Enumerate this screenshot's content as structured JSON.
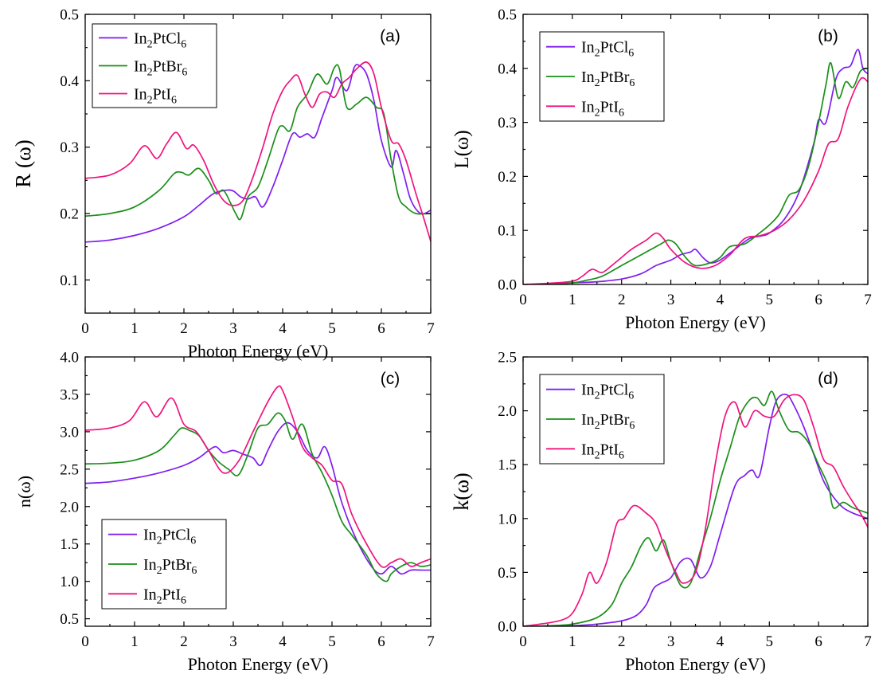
{
  "chart_data": [
    {
      "type": "line",
      "panel_label": "(a)",
      "xlabel": "Photon Energy (eV)",
      "ylabel": "R (ω)",
      "xlim": [
        0,
        7
      ],
      "ylim": [
        0.05,
        0.5
      ],
      "xticks": [
        0,
        1,
        2,
        3,
        4,
        5,
        6,
        7
      ],
      "yticks": [
        0.1,
        0.2,
        0.3,
        0.4,
        0.5
      ],
      "ytick_labels": [
        "0.1",
        "0.2",
        "0.3",
        "0.4",
        "0.5"
      ],
      "legend_position": "top-left",
      "series": [
        {
          "compound": "In2PtCl6",
          "name_base": "In",
          "sub1": "2",
          "name_mid": "PtCl",
          "sub2": "6",
          "color": "#7f1df0",
          "x": [
            0,
            0.5,
            1,
            1.5,
            2,
            2.3,
            2.6,
            2.85,
            3.0,
            3.15,
            3.3,
            3.45,
            3.6,
            3.8,
            4.0,
            4.2,
            4.35,
            4.5,
            4.65,
            4.8,
            5.0,
            5.1,
            5.3,
            5.45,
            5.55,
            5.7,
            5.85,
            6.0,
            6.2,
            6.3,
            6.45,
            6.6,
            6.8,
            7.0
          ],
          "y": [
            0.157,
            0.16,
            0.167,
            0.178,
            0.195,
            0.212,
            0.23,
            0.235,
            0.234,
            0.225,
            0.222,
            0.225,
            0.21,
            0.24,
            0.28,
            0.32,
            0.315,
            0.32,
            0.315,
            0.345,
            0.385,
            0.405,
            0.385,
            0.42,
            0.423,
            0.41,
            0.37,
            0.31,
            0.27,
            0.295,
            0.26,
            0.22,
            0.2,
            0.205
          ]
        },
        {
          "compound": "In2PtBr6",
          "name_base": "In",
          "sub1": "2",
          "name_mid": "PtBr",
          "sub2": "6",
          "color": "#1a8f1a",
          "x": [
            0,
            0.5,
            1,
            1.5,
            1.8,
            1.95,
            2.1,
            2.3,
            2.5,
            2.65,
            2.8,
            2.95,
            3.05,
            3.15,
            3.3,
            3.5,
            3.7,
            3.9,
            4.0,
            4.15,
            4.3,
            4.5,
            4.7,
            4.9,
            5.05,
            5.15,
            5.3,
            5.5,
            5.7,
            5.9,
            6.05,
            6.2,
            6.35,
            6.5,
            6.7,
            7.0
          ],
          "y": [
            0.196,
            0.2,
            0.21,
            0.235,
            0.26,
            0.262,
            0.258,
            0.268,
            0.25,
            0.23,
            0.235,
            0.215,
            0.2,
            0.192,
            0.225,
            0.24,
            0.28,
            0.325,
            0.332,
            0.325,
            0.36,
            0.38,
            0.41,
            0.395,
            0.42,
            0.418,
            0.36,
            0.365,
            0.375,
            0.36,
            0.35,
            0.28,
            0.225,
            0.21,
            0.2,
            0.2
          ]
        },
        {
          "compound": "In2PtI6",
          "name_base": "In",
          "sub1": "2",
          "name_mid": "PtI",
          "sub2": "6",
          "color": "#f0137e",
          "x": [
            0,
            0.5,
            0.9,
            1.2,
            1.45,
            1.65,
            1.85,
            2.05,
            2.2,
            2.4,
            2.6,
            2.8,
            3.0,
            3.2,
            3.4,
            3.6,
            3.8,
            4.0,
            4.15,
            4.3,
            4.45,
            4.6,
            4.75,
            4.9,
            5.05,
            5.2,
            5.35,
            5.5,
            5.7,
            5.85,
            6.0,
            6.2,
            6.35,
            6.5,
            6.7,
            6.85,
            7.0
          ],
          "y": [
            0.253,
            0.258,
            0.275,
            0.302,
            0.283,
            0.305,
            0.322,
            0.298,
            0.303,
            0.28,
            0.245,
            0.22,
            0.212,
            0.22,
            0.255,
            0.3,
            0.35,
            0.385,
            0.4,
            0.408,
            0.38,
            0.36,
            0.38,
            0.383,
            0.375,
            0.395,
            0.405,
            0.418,
            0.428,
            0.41,
            0.36,
            0.31,
            0.305,
            0.28,
            0.23,
            0.195,
            0.158
          ]
        }
      ]
    },
    {
      "type": "line",
      "panel_label": "(b)",
      "xlabel": "Photon Energy (eV)",
      "ylabel": "L(ω)",
      "xlim": [
        0,
        7
      ],
      "ylim": [
        0,
        0.5
      ],
      "xticks": [
        0,
        1,
        2,
        3,
        4,
        5,
        6,
        7
      ],
      "yticks": [
        0.0,
        0.1,
        0.2,
        0.3,
        0.4,
        0.5
      ],
      "ytick_labels": [
        "0.0",
        "0.1",
        "0.2",
        "0.3",
        "0.4",
        "0.5"
      ],
      "legend_position": "top-left",
      "series": [
        {
          "compound": "In2PtCl6",
          "name_base": "In",
          "sub1": "2",
          "name_mid": "PtCl",
          "sub2": "6",
          "color": "#7f1df0",
          "x": [
            0,
            0.5,
            1,
            1.5,
            2,
            2.4,
            2.7,
            3.0,
            3.2,
            3.4,
            3.5,
            3.65,
            3.8,
            4.0,
            4.3,
            4.6,
            4.85,
            5.0,
            5.3,
            5.6,
            5.9,
            6.0,
            6.15,
            6.35,
            6.5,
            6.65,
            6.8,
            6.9,
            7.0
          ],
          "y": [
            0,
            0.001,
            0.003,
            0.005,
            0.01,
            0.02,
            0.035,
            0.045,
            0.055,
            0.06,
            0.065,
            0.05,
            0.04,
            0.045,
            0.065,
            0.085,
            0.09,
            0.095,
            0.12,
            0.17,
            0.26,
            0.305,
            0.3,
            0.38,
            0.4,
            0.405,
            0.435,
            0.4,
            0.39
          ]
        },
        {
          "compound": "In2PtBr6",
          "name_base": "In",
          "sub1": "2",
          "name_mid": "PtBr",
          "sub2": "6",
          "color": "#1a8f1a",
          "x": [
            0,
            0.5,
            1,
            1.3,
            1.6,
            2.0,
            2.3,
            2.6,
            2.8,
            2.95,
            3.1,
            3.3,
            3.5,
            3.8,
            4.0,
            4.2,
            4.5,
            4.8,
            5.0,
            5.2,
            5.4,
            5.6,
            5.8,
            6.0,
            6.15,
            6.25,
            6.4,
            6.55,
            6.7,
            6.85,
            7.0
          ],
          "y": [
            0,
            0.001,
            0.003,
            0.008,
            0.015,
            0.035,
            0.05,
            0.065,
            0.075,
            0.082,
            0.075,
            0.05,
            0.035,
            0.04,
            0.05,
            0.07,
            0.075,
            0.095,
            0.11,
            0.13,
            0.165,
            0.175,
            0.22,
            0.3,
            0.37,
            0.41,
            0.345,
            0.375,
            0.365,
            0.395,
            0.4
          ]
        },
        {
          "compound": "In2PtI6",
          "name_base": "In",
          "sub1": "2",
          "name_mid": "PtI",
          "sub2": "6",
          "color": "#f0137e",
          "x": [
            0,
            0.5,
            1,
            1.2,
            1.4,
            1.6,
            1.8,
            2.0,
            2.2,
            2.5,
            2.7,
            2.85,
            3.0,
            3.3,
            3.6,
            3.9,
            4.2,
            4.5,
            4.8,
            5.1,
            5.4,
            5.7,
            6.0,
            6.2,
            6.4,
            6.6,
            6.85,
            7.0
          ],
          "y": [
            0,
            0.002,
            0.006,
            0.015,
            0.028,
            0.022,
            0.035,
            0.05,
            0.065,
            0.082,
            0.095,
            0.085,
            0.065,
            0.04,
            0.03,
            0.035,
            0.055,
            0.085,
            0.09,
            0.1,
            0.12,
            0.155,
            0.21,
            0.26,
            0.27,
            0.33,
            0.38,
            0.375
          ]
        }
      ]
    },
    {
      "type": "line",
      "panel_label": "(c)",
      "xlabel": "Photon Energy (eV)",
      "ylabel": "n(ω)",
      "xlim": [
        0,
        7
      ],
      "ylim": [
        0.4,
        4.0
      ],
      "xticks": [
        0,
        1,
        2,
        3,
        4,
        5,
        6,
        7
      ],
      "yticks": [
        0.5,
        1.0,
        1.5,
        2.0,
        2.5,
        3.0,
        3.5,
        4.0
      ],
      "ytick_labels": [
        "0.5",
        "1.0",
        "1.5",
        "2.0",
        "2.5",
        "3.0",
        "3.5",
        "4.0"
      ],
      "legend_position": "bottom-left",
      "series": [
        {
          "compound": "In2PtCl6",
          "name_base": "In",
          "sub1": "2",
          "name_mid": "PtCl",
          "sub2": "6",
          "color": "#7f1df0",
          "x": [
            0,
            0.5,
            1,
            1.5,
            2,
            2.3,
            2.5,
            2.65,
            2.8,
            3.0,
            3.2,
            3.4,
            3.55,
            3.7,
            3.9,
            4.1,
            4.3,
            4.5,
            4.7,
            4.85,
            5.0,
            5.2,
            5.5,
            5.8,
            6.0,
            6.2,
            6.4,
            6.6,
            6.8,
            7.0
          ],
          "y": [
            2.31,
            2.33,
            2.38,
            2.45,
            2.55,
            2.65,
            2.75,
            2.8,
            2.72,
            2.75,
            2.7,
            2.65,
            2.55,
            2.75,
            3.0,
            3.12,
            3.0,
            2.75,
            2.65,
            2.8,
            2.55,
            2.05,
            1.55,
            1.2,
            1.1,
            1.2,
            1.1,
            1.15,
            1.15,
            1.15
          ]
        },
        {
          "compound": "In2PtBr6",
          "name_base": "In",
          "sub1": "2",
          "name_mid": "PtBr",
          "sub2": "6",
          "color": "#1a8f1a",
          "x": [
            0,
            0.5,
            1,
            1.5,
            1.8,
            1.95,
            2.1,
            2.3,
            2.5,
            2.7,
            2.9,
            3.1,
            3.3,
            3.5,
            3.7,
            3.9,
            4.05,
            4.2,
            4.4,
            4.6,
            4.8,
            5.0,
            5.2,
            5.4,
            5.7,
            5.9,
            6.1,
            6.2,
            6.4,
            6.6,
            6.8,
            7.0
          ],
          "y": [
            2.57,
            2.58,
            2.62,
            2.75,
            2.95,
            3.05,
            3.02,
            2.95,
            2.75,
            2.6,
            2.5,
            2.42,
            2.7,
            3.05,
            3.1,
            3.25,
            3.15,
            2.9,
            3.1,
            2.7,
            2.45,
            2.15,
            1.8,
            1.62,
            1.35,
            1.1,
            1.0,
            1.1,
            1.2,
            1.25,
            1.2,
            1.22
          ]
        },
        {
          "compound": "In2PtI6",
          "name_base": "In",
          "sub1": "2",
          "name_mid": "PtI",
          "sub2": "6",
          "color": "#f0137e",
          "x": [
            0,
            0.5,
            0.9,
            1.2,
            1.45,
            1.75,
            2.0,
            2.25,
            2.5,
            2.8,
            3.1,
            3.4,
            3.7,
            3.9,
            4.0,
            4.2,
            4.4,
            4.6,
            4.8,
            5.0,
            5.2,
            5.4,
            5.7,
            6.0,
            6.2,
            6.4,
            6.6,
            6.8,
            7.0
          ],
          "y": [
            3.02,
            3.05,
            3.15,
            3.4,
            3.2,
            3.45,
            3.1,
            3.0,
            2.75,
            2.45,
            2.6,
            3.0,
            3.4,
            3.6,
            3.55,
            3.2,
            2.8,
            2.65,
            2.55,
            2.35,
            2.3,
            1.9,
            1.5,
            1.2,
            1.25,
            1.3,
            1.2,
            1.25,
            1.3
          ]
        }
      ]
    },
    {
      "type": "line",
      "panel_label": "(d)",
      "xlabel": "Photon Energy (eV)",
      "ylabel": "k(ω)",
      "xlim": [
        0,
        7
      ],
      "ylim": [
        0,
        2.5
      ],
      "xticks": [
        0,
        1,
        2,
        3,
        4,
        5,
        6,
        7
      ],
      "yticks": [
        0.0,
        0.5,
        1.0,
        1.5,
        2.0,
        2.5
      ],
      "ytick_labels": [
        "0.0",
        "0.5",
        "1.0",
        "1.5",
        "2.0",
        "2.5"
      ],
      "legend_position": "top-left",
      "series": [
        {
          "compound": "In2PtCl6",
          "name_base": "In",
          "sub1": "2",
          "name_mid": "PtCl",
          "sub2": "6",
          "color": "#7f1df0",
          "x": [
            0,
            0.5,
            1,
            1.5,
            2.0,
            2.3,
            2.5,
            2.65,
            2.8,
            3.0,
            3.2,
            3.4,
            3.6,
            3.8,
            4.0,
            4.3,
            4.5,
            4.65,
            4.8,
            5.0,
            5.15,
            5.35,
            5.5,
            5.7,
            5.9,
            6.1,
            6.3,
            6.5,
            6.7,
            7.0
          ],
          "y": [
            0,
            0,
            0.005,
            0.02,
            0.05,
            0.1,
            0.2,
            0.35,
            0.4,
            0.45,
            0.6,
            0.62,
            0.45,
            0.55,
            0.85,
            1.3,
            1.4,
            1.45,
            1.4,
            1.85,
            2.1,
            2.15,
            2.05,
            1.85,
            1.6,
            1.35,
            1.2,
            1.1,
            1.05,
            1.0
          ]
        },
        {
          "compound": "In2PtBr6",
          "name_base": "In",
          "sub1": "2",
          "name_mid": "PtBr",
          "sub2": "6",
          "color": "#1a8f1a",
          "x": [
            0,
            0.5,
            1,
            1.5,
            1.8,
            2.0,
            2.2,
            2.4,
            2.55,
            2.7,
            2.85,
            3.0,
            3.2,
            3.4,
            3.6,
            3.8,
            4.0,
            4.2,
            4.4,
            4.6,
            4.75,
            4.9,
            5.05,
            5.2,
            5.4,
            5.6,
            5.8,
            6.0,
            6.2,
            6.3,
            6.5,
            6.7,
            7.0
          ],
          "y": [
            0,
            0.005,
            0.02,
            0.08,
            0.2,
            0.4,
            0.55,
            0.75,
            0.82,
            0.7,
            0.8,
            0.6,
            0.38,
            0.4,
            0.7,
            1.0,
            1.35,
            1.65,
            1.95,
            2.1,
            2.12,
            2.05,
            2.18,
            2.0,
            1.82,
            1.8,
            1.7,
            1.5,
            1.3,
            1.1,
            1.15,
            1.1,
            1.05
          ]
        },
        {
          "compound": "In2PtI6",
          "name_base": "In",
          "sub1": "2",
          "name_mid": "PtI",
          "sub2": "6",
          "color": "#f0137e",
          "x": [
            0,
            0.5,
            0.8,
            1.0,
            1.2,
            1.35,
            1.5,
            1.7,
            1.9,
            2.05,
            2.25,
            2.5,
            2.7,
            2.9,
            3.1,
            3.25,
            3.5,
            3.7,
            3.9,
            4.1,
            4.3,
            4.5,
            4.7,
            4.9,
            5.1,
            5.3,
            5.5,
            5.7,
            5.9,
            6.1,
            6.3,
            6.5,
            6.7,
            6.85,
            7.0
          ],
          "y": [
            0,
            0.03,
            0.06,
            0.12,
            0.3,
            0.5,
            0.4,
            0.6,
            0.95,
            1.0,
            1.12,
            1.05,
            0.95,
            0.7,
            0.5,
            0.4,
            0.5,
            0.9,
            1.5,
            1.95,
            2.08,
            1.85,
            2.0,
            1.95,
            1.95,
            2.1,
            2.15,
            2.1,
            1.85,
            1.55,
            1.48,
            1.3,
            1.15,
            1.05,
            0.92
          ]
        }
      ]
    }
  ]
}
